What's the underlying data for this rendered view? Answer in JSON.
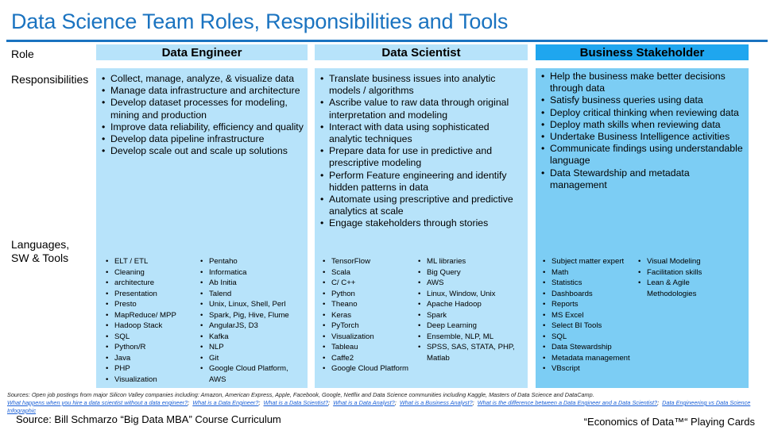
{
  "title": "Data Science Team Roles, Responsibilities and Tools",
  "rows": {
    "role": "Role",
    "responsibilities": "Responsibilities",
    "tools_line1": "Languages,",
    "tools_line2": "SW & Tools"
  },
  "columns": [
    {
      "header": "Data Engineer",
      "responsibilities": [
        "Collect, manage, analyze, & visualize data",
        "Manage data infrastructure and architecture",
        "Develop dataset processes for modeling, mining and production",
        "Improve data reliability, efficiency and quality",
        "Develop data pipeline infrastructure",
        "Develop scale out and scale up solutions"
      ],
      "tools_a": [
        "ELT / ETL",
        "Cleaning",
        "architecture",
        "Presentation",
        "Presto",
        "MapReduce/ MPP",
        "Hadoop Stack",
        "SQL",
        "Python/R",
        "Java",
        "PHP",
        "Visualization"
      ],
      "tools_b": [
        "Pentaho",
        "Informatica",
        "Ab Initia",
        "Talend",
        "Unix, Linux, Shell, Perl",
        "Spark, Pig, Hive, Flume",
        "AngularJS, D3",
        "Kafka",
        "NLP",
        "Git",
        "Google Cloud Platform, AWS"
      ]
    },
    {
      "header": "Data Scientist",
      "responsibilities": [
        "Translate business issues into analytic models / algorithms",
        "Ascribe value to raw data through original interpretation and modeling",
        "Interact with data using sophisticated analytic techniques",
        "Prepare data for use in predictive and prescriptive modeling",
        "Perform Feature engineering and identify hidden patterns in data",
        "Automate using prescriptive and predictive analytics at scale",
        "Engage stakeholders through stories"
      ],
      "tools_a": [
        "TensorFlow",
        "Scala",
        "C/ C++",
        "Python",
        "Theano",
        "Keras",
        "PyTorch",
        "Visualization",
        "Tableau",
        "Caffe2",
        "Google Cloud Platform"
      ],
      "tools_b": [
        "ML libraries",
        "Big Query",
        "AWS",
        "Linux, Window, Unix",
        "Apache Hadoop",
        "Spark",
        "Deep Learning",
        "Ensemble, NLP, ML",
        "SPSS, SAS, STATA, PHP, Matlab"
      ]
    },
    {
      "header": "Business Stakeholder",
      "responsibilities": [
        "Help the business make better decisions through data",
        "Satisfy business queries using data",
        "Deploy critical thinking when reviewing data",
        "Deploy math skills when reviewing data",
        "Undertake Business Intelligence activities",
        "Communicate findings using understandable language",
        "Data Stewardship and metadata management"
      ],
      "tools_a": [
        "Subject matter expert",
        "Math",
        "Statistics",
        "Dashboards",
        "Reports",
        "MS Excel",
        "Select BI Tools",
        "SQL",
        "Data Stewardship",
        "Metadata management",
        "VBscript"
      ],
      "tools_b": [
        "Visual Modeling",
        "Facilitation skills",
        "Lean & Agile Methodologies"
      ]
    }
  ],
  "sources": {
    "text": "Sources: Open job postings from major Silicon Valley companies including:  Amazon, American Express, Apple, Facebook, Google, Netflix  and Data Science communities including Kaggle, Masters of Data Science and DataCamp.",
    "links": [
      "What happens when you hire a data scientist without a data engineer?",
      "What is a Data Engineer?",
      "What is a Data Scientist?",
      "What is a Data Analyst?",
      "What is a Business Analyst?",
      "What is the difference between a Data Engineer and a Data Scientist?",
      "Data Engineering vs Data Science Infographic"
    ]
  },
  "footer": {
    "source": "Source: Bill Schmarzo “Big Data MBA” Course Curriculum",
    "cards": "“Economics of Data™“ Playing Cards"
  },
  "colors": {
    "title": "#1a73c0",
    "light_column": "#b7e3fa",
    "stakeholder_header": "#1fa6ef",
    "stakeholder_body": "#7ccdf4"
  }
}
